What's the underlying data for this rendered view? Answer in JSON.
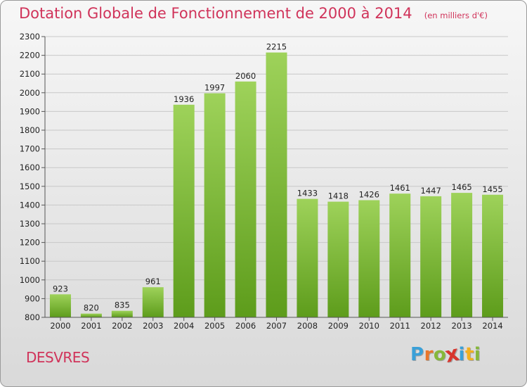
{
  "header": {
    "title": "Dotation Globale de Fonctionnement de 2000 à 2014",
    "unit": "(en milliers d'€)"
  },
  "footer": {
    "commune": "DESVRES",
    "logo_letters": [
      "P",
      "r",
      "o",
      "x",
      "i",
      "t",
      "i"
    ],
    "logo_colors": [
      "#3aa0d8",
      "#e9762b",
      "#86b83a",
      "#d8352d",
      "#3aa0d8",
      "#f2b01e",
      "#86b83a"
    ]
  },
  "colors": {
    "bar_top": "#9ed25a",
    "bar_bottom": "#5d9c1b",
    "grid": "#c8c8c8",
    "title": "#d0335a"
  },
  "chart_data": {
    "type": "bar",
    "title": "Dotation Globale de Fonctionnement de 2000 à 2014",
    "subtitle": "(en milliers d'€)",
    "xlabel": "",
    "ylabel": "",
    "categories": [
      "2000",
      "2001",
      "2002",
      "2003",
      "2004",
      "2005",
      "2006",
      "2007",
      "2008",
      "2009",
      "2010",
      "2011",
      "2012",
      "2013",
      "2014"
    ],
    "values": [
      923,
      820,
      835,
      961,
      1936,
      1997,
      2060,
      2215,
      1433,
      1418,
      1426,
      1461,
      1447,
      1465,
      1455
    ],
    "ylim": [
      800,
      2300
    ],
    "yticks": [
      800,
      900,
      1000,
      1100,
      1200,
      1300,
      1400,
      1500,
      1600,
      1700,
      1800,
      1900,
      2000,
      2100,
      2200,
      2300
    ],
    "grid": true,
    "legend": "none"
  }
}
